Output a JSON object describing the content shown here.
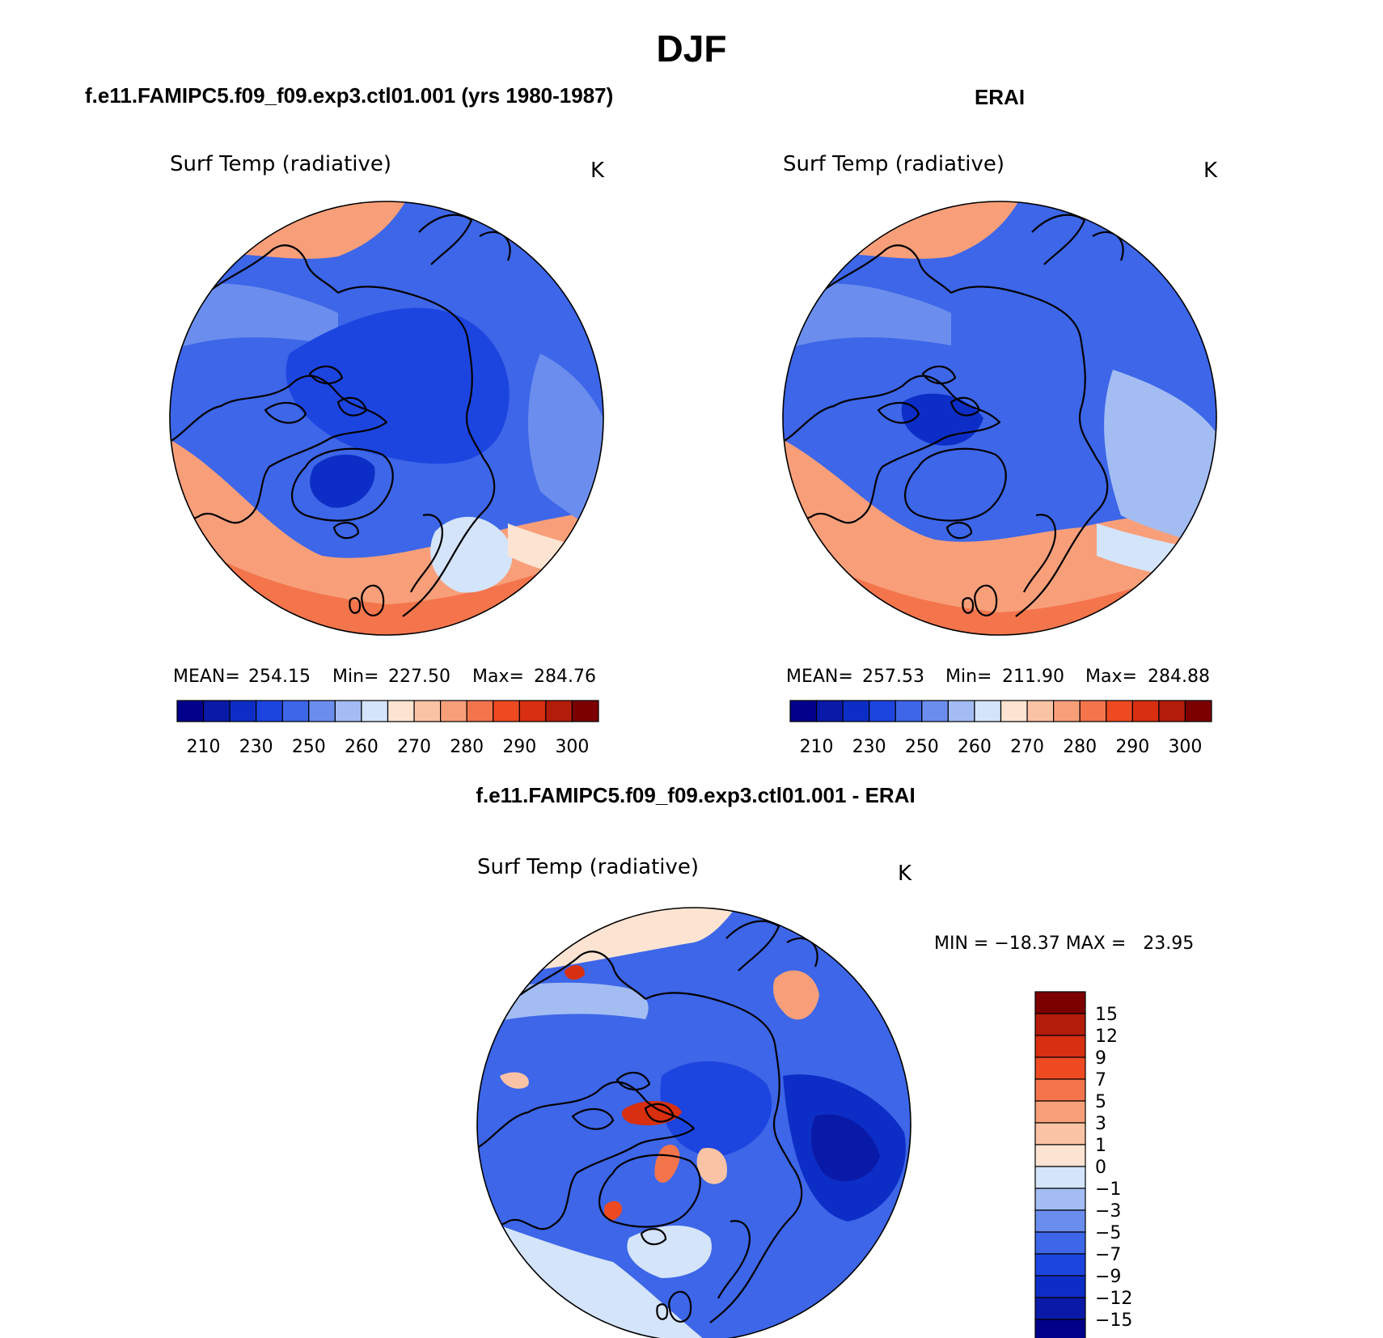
{
  "figure_title": "DJF",
  "panels": {
    "model": {
      "heading": "f.e11.FAMIPC5.f09_f09.exp3.ctl01.001 (yrs 1980-1987)",
      "variable": "Surf Temp (radiative)",
      "units": "K",
      "stats": {
        "mean_label": "MEAN=",
        "mean": "254.15",
        "min_label": "Min=",
        "min": "227.50",
        "max_label": "Max=",
        "max": "284.76"
      }
    },
    "obs": {
      "heading": "ERAI",
      "variable": "Surf Temp (radiative)",
      "units": "K",
      "stats": {
        "mean_label": "MEAN=",
        "mean": "257.53",
        "min_label": "Min=",
        "min": "211.90",
        "max_label": "Max=",
        "max": "284.88"
      }
    },
    "diff": {
      "heading": "f.e11.FAMIPC5.f09_f09.exp3.ctl01.001 - ERAI",
      "variable": "Surf Temp (radiative)",
      "units": "K",
      "minmax": "MIN = −18.37 MAX =   23.95"
    }
  },
  "abs_colorbar": {
    "colors": [
      "#00008b",
      "#0a1aa8",
      "#0d2ec6",
      "#1c45e0",
      "#3d66e8",
      "#6b8eee",
      "#a3bdf3",
      "#d4e4fa",
      "#fde4d2",
      "#fbc3a6",
      "#f89f7a",
      "#f4754c",
      "#ee4a22",
      "#d72f10",
      "#b31c09",
      "#7d0000"
    ],
    "labels": [
      "210",
      "230",
      "250",
      "260",
      "270",
      "280",
      "290",
      "300"
    ]
  },
  "diff_colorbar": {
    "colors": [
      "#7d0000",
      "#b31c09",
      "#d72f10",
      "#ee4a22",
      "#f4754c",
      "#f89f7a",
      "#fbc3a6",
      "#fde4d2",
      "#d4e4fa",
      "#a3bdf3",
      "#6b8eee",
      "#3d66e8",
      "#1c45e0",
      "#0d2ec6",
      "#0a1aa8",
      "#00008b"
    ],
    "labels": [
      "15",
      "12",
      "9",
      "7",
      "5",
      "3",
      "1",
      "0",
      "−1",
      "−3",
      "−5",
      "−7",
      "−9",
      "−12",
      "−15"
    ]
  }
}
